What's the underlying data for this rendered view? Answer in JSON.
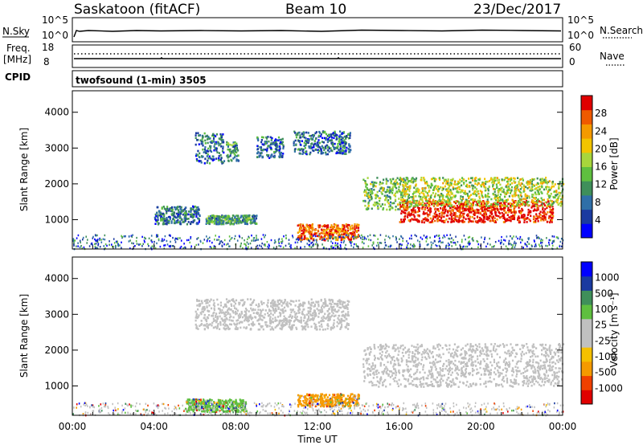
{
  "header": {
    "station": "Saskatoon (fitACF)",
    "beam": "Beam 10",
    "date": "23/Dec/2017"
  },
  "top_panel": {
    "left_label": "N.Sky",
    "right_label": "N.Search",
    "left_ticks": [
      "10^5",
      "10^0"
    ],
    "right_ticks": [
      "10^5",
      "10^0"
    ]
  },
  "freq_panel": {
    "left_label": "Freq.",
    "unit_label": "[MHz]",
    "left_ticks": [
      "18",
      "8"
    ],
    "right_label": "Nave",
    "right_ticks": [
      "60",
      "0"
    ],
    "cpid_label": "CPID",
    "cpid_text": "twofsound (1-min) 3505"
  },
  "colors": {
    "power": [
      "#0000ff",
      "#1a3aa0",
      "#2f6fa8",
      "#3f8f5a",
      "#5fbf3f",
      "#a8d63c",
      "#f2c400",
      "#f59a00",
      "#ef5a00",
      "#e00000"
    ],
    "velocity": [
      "#e00000",
      "#f04000",
      "#f59a00",
      "#f5c000",
      "#c0c0c0",
      "#c0c0c0",
      "#5fbf3f",
      "#3f8f5a",
      "#1a3aa0",
      "#0000ff"
    ],
    "ground_scatter": "#c0c0c0"
  },
  "power_panel": {
    "ylabel": "Slant Range [km]",
    "yticks": [
      "4000",
      "3000",
      "2000",
      "1000"
    ],
    "colorbar_label": "Power [dB]",
    "colorbar_ticks": [
      "28",
      "24",
      "20",
      "16",
      "12",
      "8",
      "4"
    ]
  },
  "velocity_panel": {
    "ylabel": "Slant Range [km]",
    "yticks": [
      "4000",
      "3000",
      "2000",
      "1000"
    ],
    "colorbar_label": "Velocity [m s⁻¹]",
    "colorbar_ticks": [
      "1000",
      "500",
      "100",
      "25",
      "-25",
      "-100",
      "-500",
      "-1000"
    ]
  },
  "x_axis": {
    "ticks": [
      "00:00",
      "04:00",
      "08:00",
      "12:00",
      "16:00",
      "20:00",
      "00:00"
    ],
    "label": "Time UT"
  },
  "chart_data": {
    "type": "heatmap",
    "x": "time UT (hours 0-24)",
    "ylim": [
      180,
      4600
    ],
    "xlim": [
      0,
      24
    ],
    "power_regions": [
      {
        "t0": 6.0,
        "t1": 7.4,
        "r0": 2600,
        "r1": 3450,
        "level": 2
      },
      {
        "t0": 7.5,
        "t1": 8.1,
        "r0": 2650,
        "r1": 3200,
        "level": 3
      },
      {
        "t0": 9.0,
        "t1": 10.3,
        "r0": 2750,
        "r1": 3350,
        "level": 2
      },
      {
        "t0": 10.8,
        "t1": 13.6,
        "r0": 2850,
        "r1": 3500,
        "level": 2
      },
      {
        "t0": 14.2,
        "t1": 16.5,
        "r0": 1300,
        "r1": 2200,
        "level": 4
      },
      {
        "t0": 16.0,
        "t1": 23.5,
        "r0": 950,
        "r1": 1550,
        "level": 9
      },
      {
        "t0": 16.0,
        "t1": 24.0,
        "r0": 1400,
        "r1": 2200,
        "level": 5
      },
      {
        "t0": 11.0,
        "t1": 14.0,
        "r0": 450,
        "r1": 900,
        "level": 8
      },
      {
        "t0": 4.0,
        "t1": 6.2,
        "r0": 900,
        "r1": 1400,
        "level": 2
      },
      {
        "t0": 6.5,
        "t1": 9.0,
        "r0": 900,
        "r1": 1150,
        "level": 3
      }
    ],
    "velocity_regions": [
      {
        "t0": 14.2,
        "t1": 24.0,
        "r0": 1000,
        "r1": 2200,
        "level": "ground"
      },
      {
        "t0": 6.0,
        "t1": 13.5,
        "r0": 2600,
        "r1": 3450,
        "level": "ground"
      },
      {
        "t0": 11.0,
        "t1": 14.0,
        "r0": 450,
        "r1": 800,
        "level": "-100"
      },
      {
        "t0": 5.5,
        "t1": 8.5,
        "r0": 300,
        "r1": 650,
        "level": "100"
      }
    ]
  }
}
